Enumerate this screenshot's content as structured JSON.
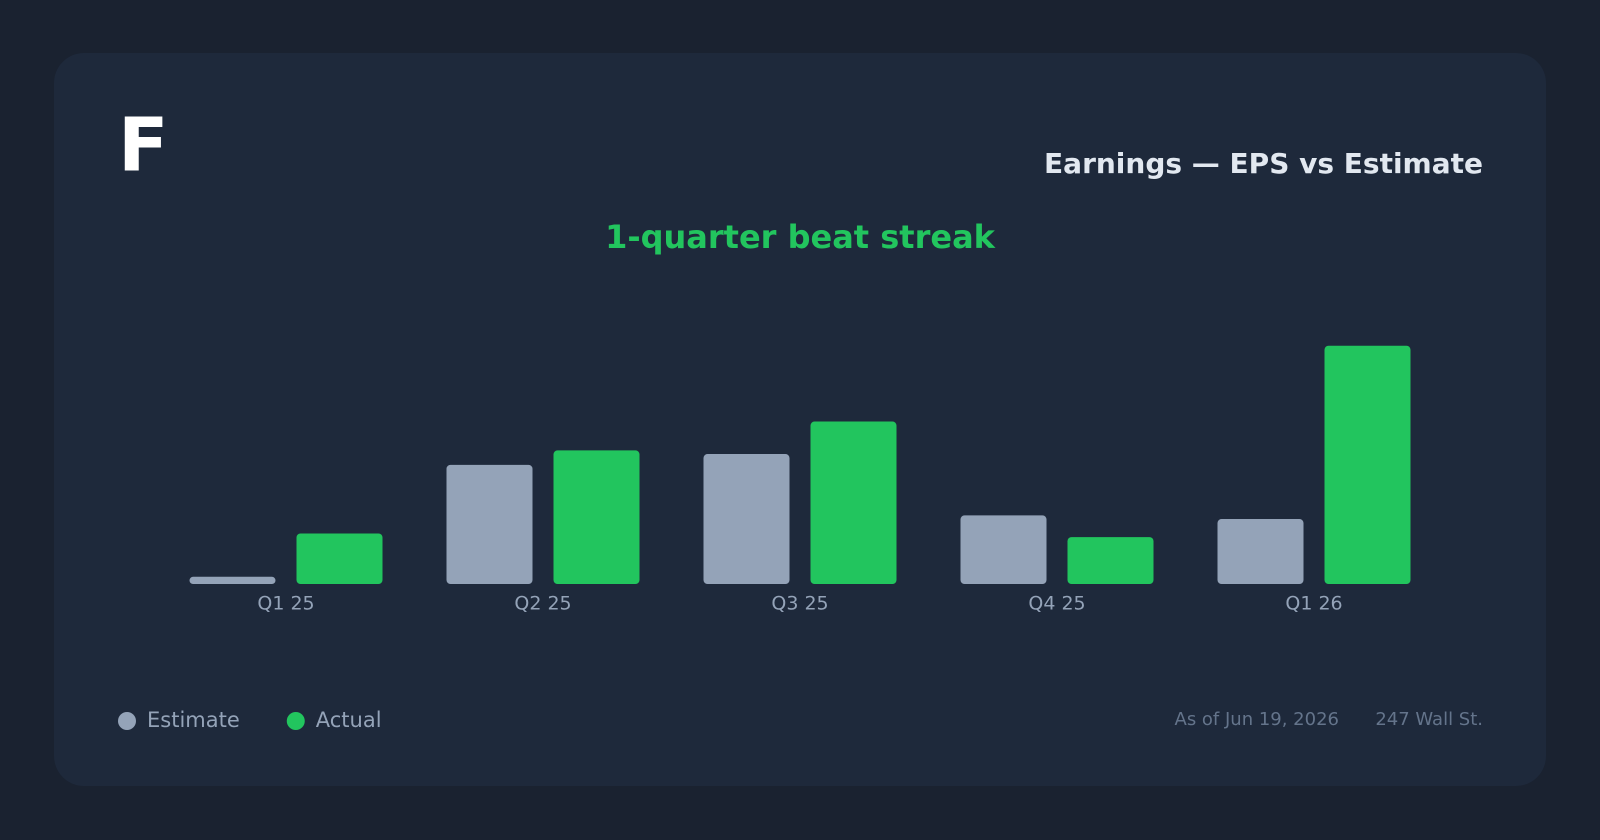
{
  "logo": "F",
  "chart_data": {
    "type": "bar",
    "title": "Earnings — EPS vs Estimate",
    "subtitle": "1-quarter beat streak",
    "categories": [
      "Q1 25",
      "Q2 25",
      "Q3 25",
      "Q4 25",
      "Q1 26"
    ],
    "series": [
      {
        "name": "Estimate",
        "color": "#94a3b8",
        "values": [
          0.02,
          0.33,
          0.36,
          0.19,
          0.18
        ]
      },
      {
        "name": "Actual",
        "color": "#22c55e",
        "values": [
          0.14,
          0.37,
          0.45,
          0.13,
          0.66
        ]
      }
    ]
  },
  "footer": {
    "as_of": "As of Jun 19, 2026",
    "source": "247 Wall St."
  }
}
